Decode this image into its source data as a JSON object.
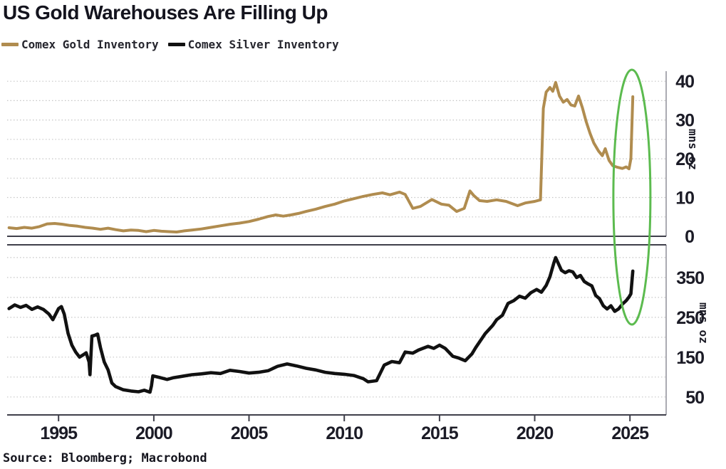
{
  "title": "US Gold Warehouses Are Filling Up",
  "source": "Source: Bloomberg; Macrobond",
  "legend": [
    {
      "label": "Comex Gold Inventory",
      "color": "#b08c4f"
    },
    {
      "label": "Comex Silver Inventory",
      "color": "#111111"
    }
  ],
  "colors": {
    "gold_line": "#b08c4f",
    "silver_line": "#111111",
    "annotation_green": "#5cbb4f",
    "grid": "#c6c6c6",
    "text": "#1b1b26"
  },
  "chart_data": {
    "type": "line",
    "title": "US Gold Warehouses Are Filling Up",
    "x_ticks": [
      1995,
      2000,
      2005,
      2010,
      2015,
      2020,
      2025
    ],
    "x_range": [
      1992.3,
      2026.9
    ],
    "grid": "dashed",
    "legend_position": "top-left",
    "panels": [
      {
        "name": "gold",
        "ylabel": "mns oz",
        "yticks": [
          0,
          10,
          20,
          30,
          40
        ],
        "grid_range": [
          5,
          40
        ],
        "grid_step": 5,
        "ylim": [
          0,
          42.6
        ],
        "series": {
          "name": "Comex Gold Inventory",
          "color": "#b08c4f",
          "width": 4,
          "x": [
            1992.4,
            1992.8,
            1993.2,
            1993.6,
            1994.0,
            1994.4,
            1994.8,
            1995.2,
            1995.6,
            1996.0,
            1996.4,
            1996.8,
            1997.2,
            1997.6,
            1998.0,
            1998.4,
            1998.8,
            1999.2,
            1999.6,
            2000.0,
            2000.4,
            2000.8,
            2001.2,
            2001.6,
            2002.0,
            2002.5,
            2003.0,
            2003.5,
            2004.0,
            2004.5,
            2005.0,
            2005.5,
            2006.0,
            2006.4,
            2006.8,
            2007.2,
            2007.6,
            2008.0,
            2008.5,
            2009.0,
            2009.5,
            2010.0,
            2010.5,
            2011.0,
            2011.5,
            2012.0,
            2012.4,
            2012.9,
            2013.2,
            2013.6,
            2014.0,
            2014.6,
            2015.1,
            2015.5,
            2015.9,
            2016.3,
            2016.6,
            2016.8,
            2017.1,
            2017.5,
            2018.0,
            2018.5,
            2019.1,
            2019.5,
            2020.0,
            2020.3,
            2020.45,
            2020.6,
            2020.8,
            2020.95,
            2021.1,
            2021.3,
            2021.5,
            2021.7,
            2021.9,
            2022.1,
            2022.3,
            2022.5,
            2022.7,
            2022.9,
            2023.1,
            2023.35,
            2023.55,
            2023.7,
            2023.9,
            2024.1,
            2024.35,
            2024.6,
            2024.8,
            2024.95,
            2025.05,
            2025.15
          ],
          "y": [
            2.2,
            2.0,
            2.3,
            2.1,
            2.5,
            3.2,
            3.3,
            3.1,
            2.8,
            2.6,
            2.3,
            2.1,
            1.8,
            2.1,
            1.7,
            1.4,
            1.6,
            1.5,
            1.2,
            1.5,
            1.3,
            1.2,
            1.1,
            1.4,
            1.6,
            1.9,
            2.3,
            2.7,
            3.1,
            3.4,
            3.8,
            4.4,
            5.1,
            5.5,
            5.2,
            5.5,
            5.9,
            6.4,
            7.0,
            7.7,
            8.3,
            9.1,
            9.7,
            10.3,
            10.8,
            11.2,
            10.7,
            11.4,
            10.8,
            7.2,
            7.7,
            9.5,
            8.3,
            8.0,
            6.4,
            7.2,
            11.7,
            10.5,
            9.2,
            9.0,
            9.4,
            9.0,
            7.9,
            8.6,
            9.0,
            9.4,
            33.0,
            37.2,
            38.4,
            37.4,
            39.7,
            36.2,
            34.6,
            35.3,
            33.9,
            33.6,
            36.2,
            33.2,
            29.6,
            26.6,
            24.1,
            22.0,
            20.8,
            22.6,
            19.6,
            18.2,
            17.8,
            17.5,
            17.9,
            17.4,
            20.0,
            36.0
          ]
        }
      },
      {
        "name": "silver",
        "ylabel": "mns oz",
        "yticks": [
          50,
          150,
          250,
          350
        ],
        "grid_range": [
          50,
          400
        ],
        "grid_step": 50,
        "ylim": [
          5,
          432
        ],
        "series": {
          "name": "Comex Silver Inventory",
          "color": "#111111",
          "width": 4.6,
          "x": [
            1992.4,
            1992.7,
            1993.0,
            1993.3,
            1993.6,
            1993.9,
            1994.2,
            1994.5,
            1994.7,
            1995.0,
            1995.15,
            1995.3,
            1995.5,
            1995.7,
            1995.9,
            1996.1,
            1996.3,
            1996.45,
            1996.6,
            1996.65,
            1996.75,
            1996.9,
            1997.05,
            1997.2,
            1997.4,
            1997.6,
            1997.8,
            1998.0,
            1998.4,
            1998.8,
            1999.2,
            1999.5,
            1999.8,
            1999.88,
            1999.95,
            2000.3,
            2000.7,
            2001.0,
            2001.5,
            2002.0,
            2002.5,
            2003.0,
            2003.5,
            2004.0,
            2004.5,
            2005.0,
            2005.5,
            2006.0,
            2006.5,
            2007.0,
            2007.5,
            2008.0,
            2008.5,
            2009.0,
            2009.5,
            2010.0,
            2010.5,
            2011.0,
            2011.25,
            2011.7,
            2012.1,
            2012.5,
            2012.9,
            2013.2,
            2013.6,
            2013.9,
            2014.4,
            2014.7,
            2015.0,
            2015.3,
            2015.7,
            2016.0,
            2016.35,
            2016.7,
            2016.9,
            2017.4,
            2017.8,
            2018.0,
            2018.3,
            2018.6,
            2018.9,
            2019.2,
            2019.5,
            2019.8,
            2020.1,
            2020.35,
            2020.6,
            2020.8,
            2021.0,
            2021.1,
            2021.25,
            2021.4,
            2021.6,
            2021.8,
            2022.0,
            2022.2,
            2022.4,
            2022.6,
            2022.8,
            2023.0,
            2023.2,
            2023.4,
            2023.6,
            2023.8,
            2024.0,
            2024.2,
            2024.4,
            2024.6,
            2024.8,
            2024.95,
            2025.05,
            2025.15
          ],
          "y": [
            272,
            281,
            275,
            280,
            270,
            276,
            270,
            258,
            244,
            272,
            277,
            258,
            210,
            180,
            163,
            150,
            156,
            161,
            138,
            106,
            203,
            205,
            208,
            174,
            138,
            118,
            85,
            76,
            68,
            65,
            63,
            67,
            62,
            78,
            103,
            99,
            94,
            98,
            102,
            106,
            108,
            111,
            109,
            117,
            114,
            110,
            112,
            116,
            127,
            133,
            128,
            122,
            118,
            112,
            109,
            107,
            104,
            96,
            88,
            91,
            130,
            139,
            136,
            163,
            160,
            168,
            177,
            172,
            180,
            172,
            152,
            148,
            141,
            158,
            174,
            209,
            230,
            244,
            255,
            285,
            292,
            303,
            298,
            312,
            320,
            313,
            330,
            352,
            386,
            400,
            384,
            368,
            362,
            367,
            364,
            350,
            355,
            340,
            334,
            329,
            305,
            297,
            279,
            271,
            279,
            265,
            271,
            283,
            292,
            301,
            309,
            366
          ]
        }
      }
    ],
    "annotation": {
      "shape": "ellipse",
      "color": "#5cbb4f",
      "x_year": 2025.1,
      "note": "highlights early-2025 inventory spike in both panels"
    }
  }
}
